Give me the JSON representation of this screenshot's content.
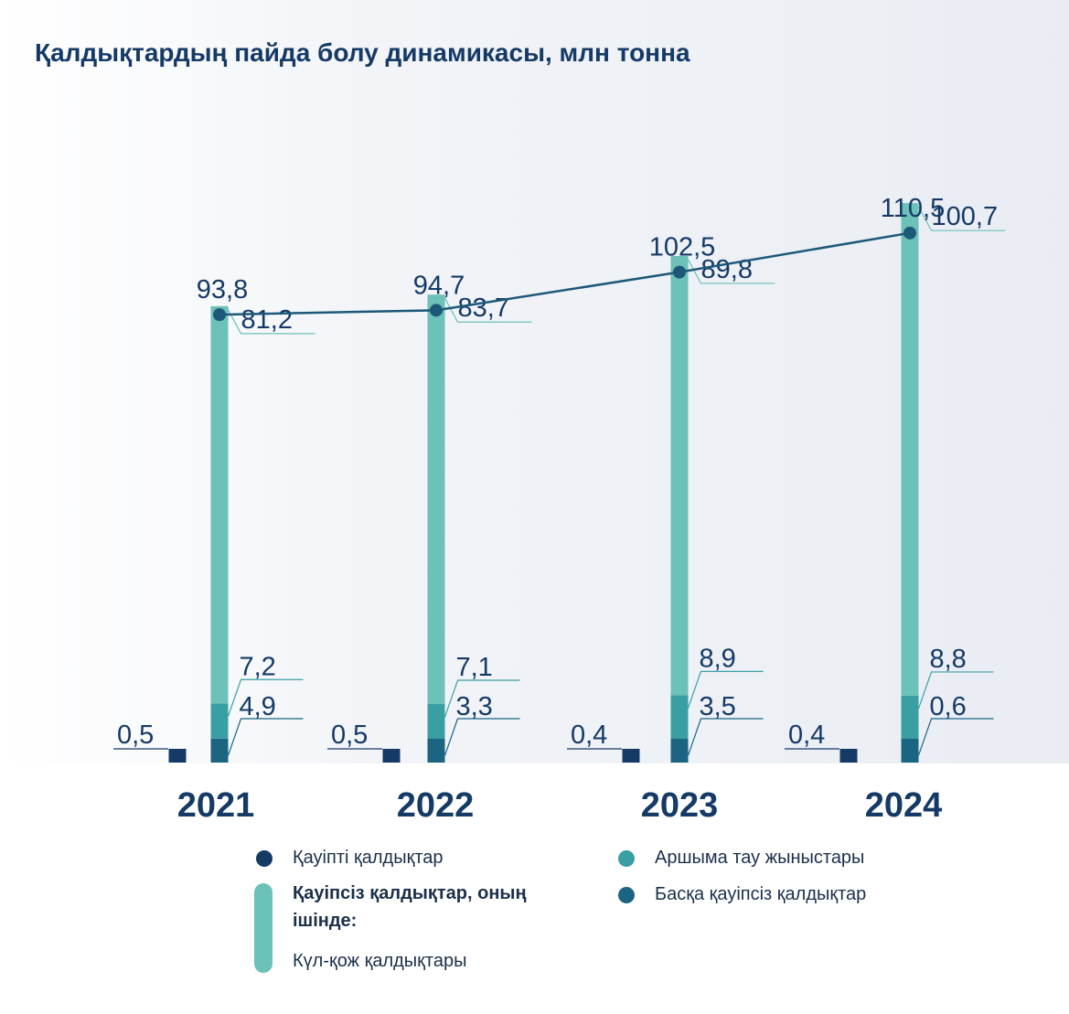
{
  "title": "Қалдықтардың пайда болу динамикасы, млн тонна",
  "colors": {
    "hazardous": "#153a66",
    "ash_slag": "#6cc1b8",
    "overburden": "#3a9fa3",
    "other_nonhaz": "#1b6583",
    "total_line": "#1d5878",
    "label": "#153a66"
  },
  "chart_data": {
    "type": "bar",
    "categories": [
      "2021",
      "2022",
      "2023",
      "2024"
    ],
    "total_line": [
      93.8,
      94.7,
      102.5,
      110.5
    ],
    "total_labels": [
      "93,8",
      "94,7",
      "102,5",
      "110,5"
    ],
    "series": [
      {
        "name": "Қауіпті қалдықтар",
        "values": [
          0.5,
          0.5,
          0.4,
          0.4
        ],
        "labels": [
          "0,5",
          "0,5",
          "0,4",
          "0,4"
        ]
      },
      {
        "name": "Басқа қауіпсіз қалдықтар",
        "values": [
          4.9,
          3.3,
          3.5,
          0.6
        ],
        "labels": [
          "4,9",
          "3,3",
          "3,5",
          "0,6"
        ]
      },
      {
        "name": "Аршыма тау жыныстары",
        "values": [
          7.2,
          7.1,
          8.9,
          8.8
        ],
        "labels": [
          "7,2",
          "7,1",
          "8,9",
          "8,8"
        ]
      },
      {
        "name": "Күл-қож қалдықтары",
        "values": [
          81.2,
          83.7,
          89.8,
          100.7
        ],
        "labels": [
          "81,2",
          "83,7",
          "89,8",
          "100,7"
        ]
      }
    ]
  },
  "legend": {
    "hazardous": "Қауіпті қалдықтар",
    "nonhazardous_heading": "Қауіпсіз  қалдықтар, оның",
    "nonhazardous_heading_2": "ішінде:",
    "ash_slag": "Күл-қож қалдықтары",
    "overburden": "Аршыма тау жыныстары",
    "other_nonhaz": "Басқа қауіпсіз қалдықтар"
  }
}
